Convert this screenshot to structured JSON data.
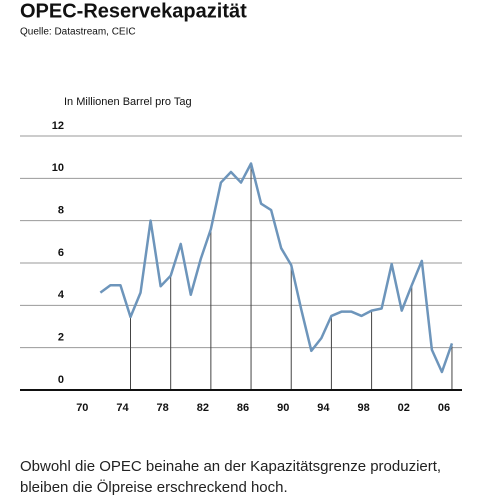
{
  "chart_data": {
    "type": "line",
    "title": "OPEC-Reservekapazität",
    "subtitle": "Quelle: Datastream, CEIC",
    "y_label": "In Millionen Barrel pro Tag",
    "caption": "Obwohl die OPEC beinahe an der Kapazitätsgrenze produziert, bleiben die Ölpreise erschreckend hoch.",
    "x": [
      1971,
      1972,
      1973,
      1974,
      1975,
      1976,
      1977,
      1978,
      1979,
      1980,
      1981,
      1982,
      1983,
      1984,
      1985,
      1986,
      1987,
      1988,
      1989,
      1990,
      1991,
      1992,
      1993,
      1994,
      1995,
      1996,
      1997,
      1998,
      1999,
      2000,
      2001,
      2002,
      2003,
      2004,
      2005,
      2006
    ],
    "series": [
      {
        "color": "#6d95bb",
        "values": [
          4.6,
          4.95,
          4.95,
          3.45,
          4.6,
          8.0,
          4.9,
          5.4,
          6.9,
          4.5,
          6.2,
          7.6,
          9.8,
          10.3,
          9.8,
          10.7,
          8.8,
          8.5,
          6.7,
          5.9,
          3.8,
          1.85,
          2.45,
          3.5,
          3.7,
          3.7,
          3.5,
          3.75,
          3.85,
          5.95,
          3.75,
          4.95,
          6.1,
          1.9,
          0.85,
          2.2
        ]
      }
    ],
    "xlim": [
      1963,
      2007
    ],
    "xticks": [
      {
        "value": 1970,
        "label": "70"
      },
      {
        "value": 1974,
        "label": "74"
      },
      {
        "value": 1978,
        "label": "78"
      },
      {
        "value": 1982,
        "label": "82"
      },
      {
        "value": 1986,
        "label": "86"
      },
      {
        "value": 1990,
        "label": "90"
      },
      {
        "value": 1994,
        "label": "94"
      },
      {
        "value": 1998,
        "label": "98"
      },
      {
        "value": 2002,
        "label": "02"
      },
      {
        "value": 2006,
        "label": "06"
      }
    ],
    "ylim": [
      0,
      12
    ],
    "yticks": [
      0,
      2,
      4,
      6,
      8,
      10,
      12
    ],
    "grid": true
  }
}
